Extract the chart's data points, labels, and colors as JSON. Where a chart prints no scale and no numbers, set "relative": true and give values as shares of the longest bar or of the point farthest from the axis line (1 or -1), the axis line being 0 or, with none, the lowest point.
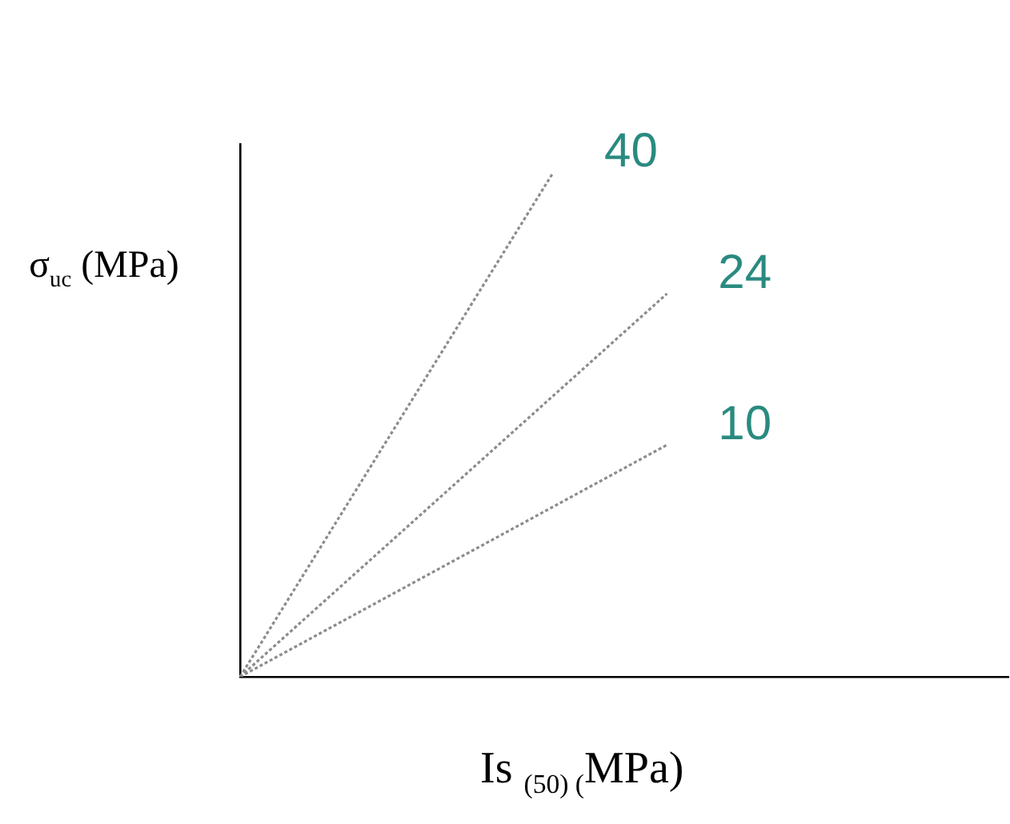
{
  "chart_data": {
    "type": "line",
    "relative": true,
    "xlabel": "Is $_{(50) (}$MPa)",
    "ylabel": "σ$_{uc}$ (MPa)",
    "grid": false,
    "legend": false,
    "marker": "none",
    "line_style": "dotted",
    "categories": [
      null,
      null,
      null,
      null,
      null,
      null,
      null,
      null,
      null,
      null,
      null,
      null,
      null,
      null,
      null,
      null,
      null,
      null,
      null,
      null,
      null,
      null,
      null,
      null,
      null,
      null,
      null,
      null
    ],
    "series": [
      {
        "name": "40",
        "color": "#8c8c8c",
        "values": [
          0,
          null,
          null,
          null,
          null,
          null,
          null,
          null,
          null,
          null,
          null,
          1,
          null,
          null,
          null,
          null,
          null,
          null,
          null,
          null,
          null,
          null,
          null,
          null,
          null,
          null,
          null,
          null
        ]
      },
      {
        "name": "24",
        "color": "#8c8c8c",
        "values": [
          0,
          null,
          null,
          null,
          null,
          null,
          null,
          null,
          null,
          null,
          null,
          null,
          null,
          null,
          null,
          0.76,
          null,
          null,
          null,
          null,
          null,
          null,
          null,
          null,
          null,
          null,
          null,
          null
        ]
      },
      {
        "name": "10",
        "color": "#8c8c8c",
        "values": [
          0,
          null,
          null,
          null,
          null,
          null,
          null,
          null,
          null,
          null,
          null,
          null,
          null,
          null,
          null,
          0.46,
          null,
          null,
          null,
          null,
          null,
          null,
          null,
          null,
          null,
          null,
          null,
          null
        ]
      }
    ]
  }
}
